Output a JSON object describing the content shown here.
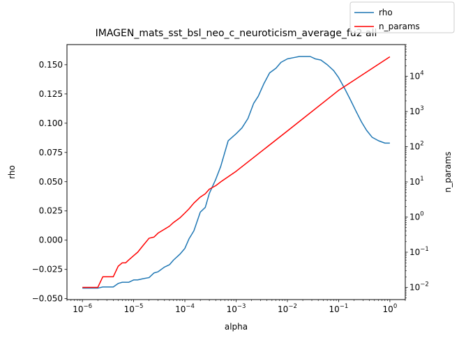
{
  "chart_data": {
    "type": "line",
    "title": "IMAGEN_mats_sst_bsl_neo_c_neuroticism_average_fu2 all",
    "xlabel": "alpha",
    "ylabel": "rho",
    "y2label": "n_params",
    "xscale": "log",
    "y2scale": "log",
    "xlim": [
      5e-07,
      2.0
    ],
    "ylim": [
      -0.0508,
      0.1672
    ],
    "y2lim": [
      0.0045,
      80000
    ],
    "x_ticks": [
      {
        "value": 1e-06,
        "mantissa": "10",
        "exp": "−6"
      },
      {
        "value": 1e-05,
        "mantissa": "10",
        "exp": "−5"
      },
      {
        "value": 0.0001,
        "mantissa": "10",
        "exp": "−4"
      },
      {
        "value": 0.001,
        "mantissa": "10",
        "exp": "−3"
      },
      {
        "value": 0.01,
        "mantissa": "10",
        "exp": "−2"
      },
      {
        "value": 0.1,
        "mantissa": "10",
        "exp": "−1"
      },
      {
        "value": 1,
        "mantissa": "10",
        "exp": "0"
      }
    ],
    "y_ticks": [
      {
        "value": -0.05,
        "label": "−0.050"
      },
      {
        "value": -0.025,
        "label": "−0.025"
      },
      {
        "value": 0.0,
        "label": "0.000"
      },
      {
        "value": 0.025,
        "label": "0.025"
      },
      {
        "value": 0.05,
        "label": "0.050"
      },
      {
        "value": 0.075,
        "label": "0.075"
      },
      {
        "value": 0.1,
        "label": "0.100"
      },
      {
        "value": 0.125,
        "label": "0.125"
      },
      {
        "value": 0.15,
        "label": "0.150"
      }
    ],
    "y2_ticks": [
      {
        "value": 0.01,
        "mantissa": "10",
        "exp": "−2"
      },
      {
        "value": 0.1,
        "mantissa": "10",
        "exp": "−1"
      },
      {
        "value": 1,
        "mantissa": "10",
        "exp": "0"
      },
      {
        "value": 10,
        "mantissa": "10",
        "exp": "1"
      },
      {
        "value": 100,
        "mantissa": "10",
        "exp": "2"
      },
      {
        "value": 1000,
        "mantissa": "10",
        "exp": "3"
      },
      {
        "value": 10000,
        "mantissa": "10",
        "exp": "4"
      }
    ],
    "legend_position": "top-right",
    "series": [
      {
        "name": "rho",
        "color": "#1f77b4",
        "axis": "left",
        "x": [
          1e-06,
          1.5e-06,
          2e-06,
          2.5e-06,
          3e-06,
          4e-06,
          5e-06,
          6e-06,
          7e-06,
          8e-06,
          1e-05,
          1.2e-05,
          1.5e-05,
          2e-05,
          2.5e-05,
          3e-05,
          4e-05,
          5e-05,
          6e-05,
          8e-05,
          0.0001,
          0.00012,
          0.00015,
          0.0002,
          0.00025,
          0.0003,
          0.0004,
          0.0005,
          0.0007,
          0.001,
          0.0013,
          0.0017,
          0.0022,
          0.0027,
          0.0035,
          0.0045,
          0.006,
          0.0075,
          0.01,
          0.013,
          0.017,
          0.022,
          0.028,
          0.035,
          0.045,
          0.06,
          0.08,
          0.1,
          0.13,
          0.17,
          0.22,
          0.28,
          0.35,
          0.45,
          0.6,
          0.8,
          1.0
        ],
        "y": [
          -0.041,
          -0.041,
          -0.041,
          -0.04,
          -0.04,
          -0.04,
          -0.037,
          -0.036,
          -0.036,
          -0.036,
          -0.034,
          -0.034,
          -0.033,
          -0.032,
          -0.028,
          -0.027,
          -0.023,
          -0.021,
          -0.017,
          -0.012,
          -0.007,
          0.001,
          0.008,
          0.024,
          0.028,
          0.04,
          0.052,
          0.063,
          0.085,
          0.091,
          0.096,
          0.104,
          0.117,
          0.123,
          0.134,
          0.143,
          0.147,
          0.152,
          0.155,
          0.156,
          0.157,
          0.157,
          0.157,
          0.155,
          0.154,
          0.15,
          0.145,
          0.139,
          0.13,
          0.12,
          0.11,
          0.101,
          0.094,
          0.088,
          0.085,
          0.083,
          0.083
        ]
      },
      {
        "name": "n_params",
        "color": "#ff0000",
        "axis": "right",
        "x": [
          1e-06,
          1.5e-06,
          2e-06,
          2.5e-06,
          3e-06,
          4e-06,
          5e-06,
          6e-06,
          7e-06,
          8e-06,
          1e-05,
          1.2e-05,
          1.5e-05,
          2e-05,
          2.5e-05,
          3e-05,
          4e-05,
          5e-05,
          6e-05,
          8e-05,
          0.0001,
          0.00012,
          0.00015,
          0.0002,
          0.00025,
          0.0003,
          0.0004,
          0.0005,
          0.001,
          0.01,
          0.1,
          1.0
        ],
        "y": [
          0.01,
          0.01,
          0.01,
          0.02,
          0.02,
          0.02,
          0.04,
          0.05,
          0.05,
          0.06,
          0.08,
          0.1,
          0.15,
          0.25,
          0.27,
          0.35,
          0.45,
          0.55,
          0.7,
          0.95,
          1.3,
          1.7,
          2.5,
          3.7,
          4.6,
          6.2,
          7.8,
          10,
          20,
          280,
          4000,
          36000
        ]
      }
    ]
  }
}
